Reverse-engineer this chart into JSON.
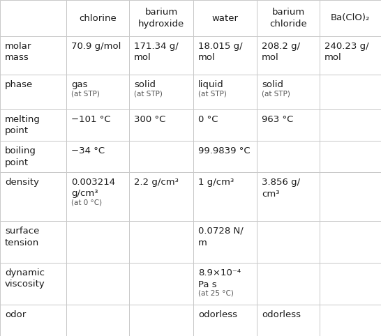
{
  "col_headers": [
    "",
    "chlorine",
    "barium\nhydroxide",
    "water",
    "barium\nchloride",
    "Ba(ClO)₂"
  ],
  "row_labels": [
    "molar\nmass",
    "phase",
    "melting\npoint",
    "boiling\npoint",
    "density",
    "surface\ntension",
    "dynamic\nviscosity",
    "odor"
  ],
  "cells": [
    [
      "70.9 g/mol",
      "171.34 g/\nmol",
      "18.015 g/\nmol",
      "208.2 g/\nmol",
      "240.23 g/\nmol"
    ],
    [
      "gas",
      "solid",
      "liquid",
      "solid",
      ""
    ],
    [
      "−101 °C",
      "300 °C",
      "0 °C",
      "963 °C",
      ""
    ],
    [
      "−34 °C",
      "",
      "99.9839 °C",
      "",
      ""
    ],
    [
      "0.003214\ng/cm³",
      "2.2 g/cm³",
      "1 g/cm³",
      "3.856 g/\ncm³",
      ""
    ],
    [
      "",
      "",
      "0.0728 N/\nm",
      "",
      ""
    ],
    [
      "",
      "",
      "8.9×10⁻⁴\nPa s",
      "",
      ""
    ],
    [
      "",
      "",
      "odorless",
      "odorless",
      ""
    ]
  ],
  "phase_sub": [
    "(at STP)",
    "(at STP)",
    "(at STP)",
    "(at STP)",
    ""
  ],
  "density_chlorine_sub": "(at 0 °C)",
  "dynamic_water_sub": "(at 25 °C)",
  "grid_color": "#c8c8c8",
  "text_color": "#1a1a1a",
  "small_text_color": "#555555",
  "font_size": 9.5,
  "small_font_size": 7.5,
  "fig_width": 5.46,
  "fig_height": 4.82,
  "dpi": 100
}
